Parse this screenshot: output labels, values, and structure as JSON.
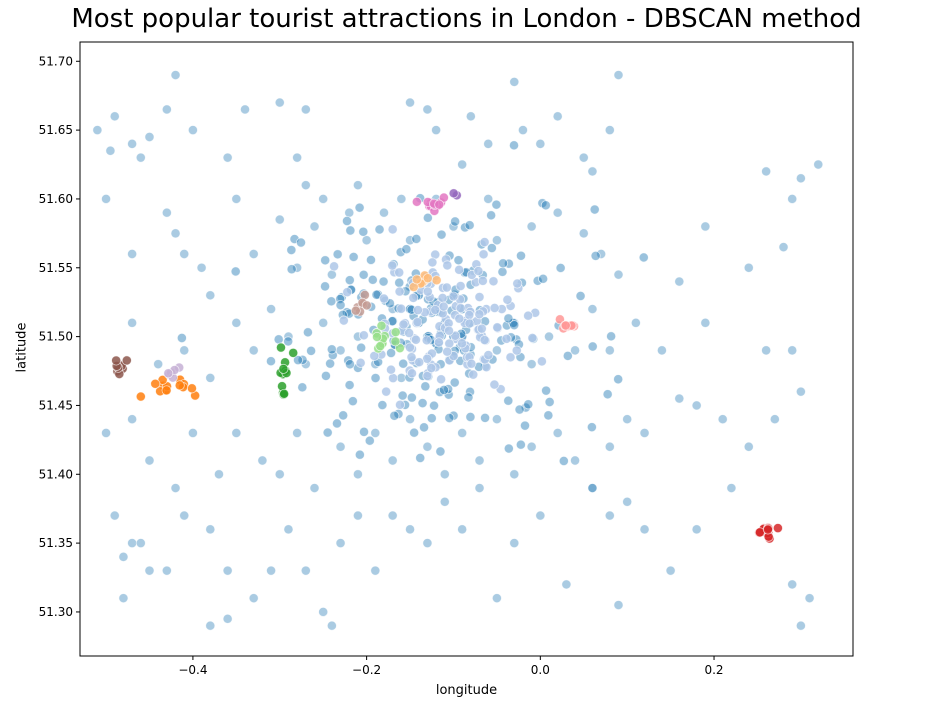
{
  "chart_data": {
    "type": "scatter",
    "title": "Most popular tourist attractions in London - DBSCAN method",
    "xlabel": "longitude",
    "ylabel": "latitude",
    "xlim": [
      -0.53,
      0.36
    ],
    "ylim": [
      51.268,
      51.714
    ],
    "xticks": [
      -0.4,
      -0.2,
      0.0,
      0.2
    ],
    "xtick_labels": [
      "−0.4",
      "−0.2",
      "0.0",
      "0.2"
    ],
    "yticks": [
      51.3,
      51.35,
      51.4,
      51.45,
      51.5,
      51.55,
      51.6,
      51.65,
      51.7
    ],
    "ytick_labels": [
      "51.30",
      "51.35",
      "51.40",
      "51.45",
      "51.50",
      "51.55",
      "51.60",
      "51.65",
      "51.70"
    ],
    "grid": false,
    "legend": "none",
    "noise_color": "#1f77b4",
    "noise_points": [
      [
        -0.49,
        51.66
      ],
      [
        -0.47,
        51.64
      ],
      [
        -0.43,
        51.665
      ],
      [
        -0.42,
        51.69
      ],
      [
        -0.4,
        51.65
      ],
      [
        -0.36,
        51.63
      ],
      [
        -0.34,
        51.665
      ],
      [
        -0.3,
        51.67
      ],
      [
        -0.27,
        51.665
      ],
      [
        -0.28,
        51.63
      ],
      [
        -0.25,
        51.6
      ],
      [
        -0.22,
        51.59
      ],
      [
        -0.15,
        51.67
      ],
      [
        -0.13,
        51.665
      ],
      [
        -0.12,
        51.65
      ],
      [
        -0.08,
        51.66
      ],
      [
        -0.06,
        51.64
      ],
      [
        -0.03,
        51.685
      ],
      [
        0.0,
        51.64
      ],
      [
        0.02,
        51.66
      ],
      [
        0.06,
        51.62
      ],
      [
        0.09,
        51.69
      ],
      [
        0.08,
        51.65
      ],
      [
        -0.5,
        51.6
      ],
      [
        -0.47,
        51.56
      ],
      [
        -0.43,
        51.59
      ],
      [
        -0.41,
        51.56
      ],
      [
        -0.38,
        51.53
      ],
      [
        -0.35,
        51.6
      ],
      [
        -0.33,
        51.56
      ],
      [
        -0.3,
        51.585
      ],
      [
        -0.28,
        51.55
      ],
      [
        -0.26,
        51.58
      ],
      [
        -0.24,
        51.545
      ],
      [
        -0.2,
        51.57
      ],
      [
        -0.18,
        51.59
      ],
      [
        -0.16,
        51.6
      ],
      [
        -0.15,
        51.57
      ],
      [
        -0.1,
        51.58
      ],
      [
        -0.06,
        51.6
      ],
      [
        -0.05,
        51.57
      ],
      [
        -0.01,
        51.58
      ],
      [
        0.02,
        51.59
      ],
      [
        0.05,
        51.575
      ],
      [
        0.07,
        51.56
      ],
      [
        0.09,
        51.545
      ],
      [
        0.16,
        51.54
      ],
      [
        0.19,
        51.58
      ],
      [
        0.24,
        51.55
      ],
      [
        0.26,
        51.62
      ],
      [
        0.28,
        51.565
      ],
      [
        0.3,
        51.615
      ],
      [
        0.32,
        51.625
      ],
      [
        0.29,
        51.6
      ],
      [
        -0.47,
        51.51
      ],
      [
        -0.44,
        51.48
      ],
      [
        -0.41,
        51.49
      ],
      [
        -0.38,
        51.47
      ],
      [
        -0.35,
        51.51
      ],
      [
        -0.33,
        51.49
      ],
      [
        -0.31,
        51.52
      ],
      [
        -0.29,
        51.5
      ],
      [
        -0.27,
        51.48
      ],
      [
        -0.25,
        51.51
      ],
      [
        -0.23,
        51.49
      ],
      [
        -0.21,
        51.5
      ],
      [
        -0.19,
        51.48
      ],
      [
        -0.16,
        51.47
      ],
      [
        -0.17,
        51.52
      ],
      [
        -0.05,
        51.49
      ],
      [
        -0.03,
        51.51
      ],
      [
        -0.01,
        51.48
      ],
      [
        0.01,
        51.5
      ],
      [
        0.04,
        51.49
      ],
      [
        0.06,
        51.52
      ],
      [
        0.08,
        51.49
      ],
      [
        0.11,
        51.51
      ],
      [
        0.14,
        51.49
      ],
      [
        0.16,
        51.455
      ],
      [
        0.18,
        51.45
      ],
      [
        0.19,
        51.51
      ],
      [
        0.21,
        51.44
      ],
      [
        0.24,
        51.42
      ],
      [
        0.26,
        51.49
      ],
      [
        0.27,
        51.44
      ],
      [
        0.29,
        51.49
      ],
      [
        0.3,
        51.46
      ],
      [
        -0.5,
        51.43
      ],
      [
        -0.47,
        51.44
      ],
      [
        -0.45,
        51.41
      ],
      [
        -0.42,
        51.39
      ],
      [
        -0.4,
        51.43
      ],
      [
        -0.37,
        51.4
      ],
      [
        -0.35,
        51.43
      ],
      [
        -0.32,
        51.41
      ],
      [
        -0.3,
        51.4
      ],
      [
        -0.28,
        51.43
      ],
      [
        -0.26,
        51.39
      ],
      [
        -0.23,
        51.42
      ],
      [
        -0.21,
        51.4
      ],
      [
        -0.19,
        51.43
      ],
      [
        -0.17,
        51.41
      ],
      [
        -0.15,
        51.44
      ],
      [
        -0.13,
        51.42
      ],
      [
        -0.11,
        51.4
      ],
      [
        -0.09,
        51.43
      ],
      [
        -0.07,
        51.41
      ],
      [
        -0.05,
        51.44
      ],
      [
        -0.03,
        51.4
      ],
      [
        -0.01,
        51.42
      ],
      [
        0.02,
        51.43
      ],
      [
        0.04,
        51.41
      ],
      [
        0.06,
        51.39
      ],
      [
        0.08,
        51.42
      ],
      [
        0.1,
        51.44
      ],
      [
        0.12,
        51.43
      ],
      [
        -0.49,
        51.37
      ],
      [
        -0.47,
        51.35
      ],
      [
        -0.46,
        51.35
      ],
      [
        -0.48,
        51.34
      ],
      [
        -0.45,
        51.33
      ],
      [
        -0.43,
        51.33
      ],
      [
        -0.41,
        51.37
      ],
      [
        -0.38,
        51.36
      ],
      [
        -0.36,
        51.33
      ],
      [
        -0.33,
        51.31
      ],
      [
        -0.31,
        51.33
      ],
      [
        -0.29,
        51.36
      ],
      [
        -0.27,
        51.33
      ],
      [
        -0.25,
        51.3
      ],
      [
        -0.23,
        51.35
      ],
      [
        -0.21,
        51.37
      ],
      [
        -0.19,
        51.33
      ],
      [
        -0.17,
        51.37
      ],
      [
        -0.15,
        51.36
      ],
      [
        -0.13,
        51.35
      ],
      [
        -0.11,
        51.38
      ],
      [
        -0.09,
        51.36
      ],
      [
        -0.07,
        51.39
      ],
      [
        -0.05,
        51.31
      ],
      [
        -0.03,
        51.35
      ],
      [
        0.0,
        51.37
      ],
      [
        0.03,
        51.32
      ],
      [
        0.06,
        51.39
      ],
      [
        0.08,
        51.37
      ],
      [
        0.1,
        51.38
      ],
      [
        0.12,
        51.36
      ],
      [
        0.15,
        51.33
      ],
      [
        0.18,
        51.36
      ],
      [
        0.22,
        51.39
      ],
      [
        0.09,
        51.305
      ],
      [
        0.29,
        51.32
      ],
      [
        0.31,
        51.31
      ],
      [
        0.3,
        51.29
      ],
      [
        -0.38,
        51.29
      ],
      [
        -0.36,
        51.295
      ],
      [
        -0.24,
        51.29
      ],
      [
        -0.48,
        51.31
      ],
      [
        -0.51,
        51.65
      ],
      [
        -0.495,
        51.635
      ],
      [
        -0.46,
        51.63
      ],
      [
        -0.45,
        51.645
      ],
      [
        -0.42,
        51.575
      ],
      [
        -0.39,
        51.55
      ],
      [
        -0.12,
        51.6
      ],
      [
        -0.09,
        51.625
      ],
      [
        -0.02,
        51.65
      ],
      [
        0.05,
        51.63
      ],
      [
        -0.21,
        51.61
      ],
      [
        -0.27,
        51.61
      ]
    ],
    "core_points": [
      [
        -0.15,
        51.52
      ],
      [
        -0.14,
        51.51
      ],
      [
        -0.13,
        51.5
      ],
      [
        -0.12,
        51.52
      ],
      [
        -0.11,
        51.51
      ],
      [
        -0.1,
        51.5
      ],
      [
        -0.09,
        51.52
      ],
      [
        -0.08,
        51.51
      ],
      [
        -0.14,
        51.53
      ],
      [
        -0.12,
        51.495
      ],
      [
        -0.1,
        51.53
      ],
      [
        -0.09,
        51.5
      ]
    ],
    "clusters": [
      {
        "color": "#aec7e8",
        "center": [
          -0.115,
          51.51
        ],
        "spread": [
          0.045,
          0.025
        ],
        "count": 160
      },
      {
        "color": "#ff7f0e",
        "center": [
          -0.43,
          51.463
        ],
        "spread": [
          0.012,
          0.005
        ],
        "count": 14
      },
      {
        "color": "#2ca02c",
        "center": [
          -0.296,
          51.479
        ],
        "spread": [
          0.005,
          0.008
        ],
        "count": 12
      },
      {
        "color": "#d62728",
        "center": [
          0.259,
          51.358
        ],
        "spread": [
          0.005,
          0.003
        ],
        "count": 12
      },
      {
        "color": "#9467bd",
        "center": [
          -0.097,
          51.605
        ],
        "spread": [
          0.002,
          0.002
        ],
        "count": 2
      },
      {
        "color": "#8c564b",
        "center": [
          -0.487,
          51.476
        ],
        "spread": [
          0.006,
          0.004
        ],
        "count": 10
      },
      {
        "color": "#e377c2",
        "center": [
          -0.123,
          51.597
        ],
        "spread": [
          0.009,
          0.004
        ],
        "count": 12
      },
      {
        "color": "#98df8a",
        "center": [
          -0.178,
          51.496
        ],
        "spread": [
          0.012,
          0.004
        ],
        "count": 12
      },
      {
        "color": "#ffbb78",
        "center": [
          -0.14,
          51.54
        ],
        "spread": [
          0.008,
          0.003
        ],
        "count": 10
      },
      {
        "color": "#ff9896",
        "center": [
          0.03,
          51.508
        ],
        "spread": [
          0.008,
          0.002
        ],
        "count": 10
      },
      {
        "color": "#c5b0d5",
        "center": [
          -0.42,
          51.477
        ],
        "spread": [
          0.006,
          0.003
        ],
        "count": 6
      },
      {
        "color": "#c49c94",
        "center": [
          -0.205,
          51.522
        ],
        "spread": [
          0.006,
          0.004
        ],
        "count": 8
      }
    ]
  }
}
